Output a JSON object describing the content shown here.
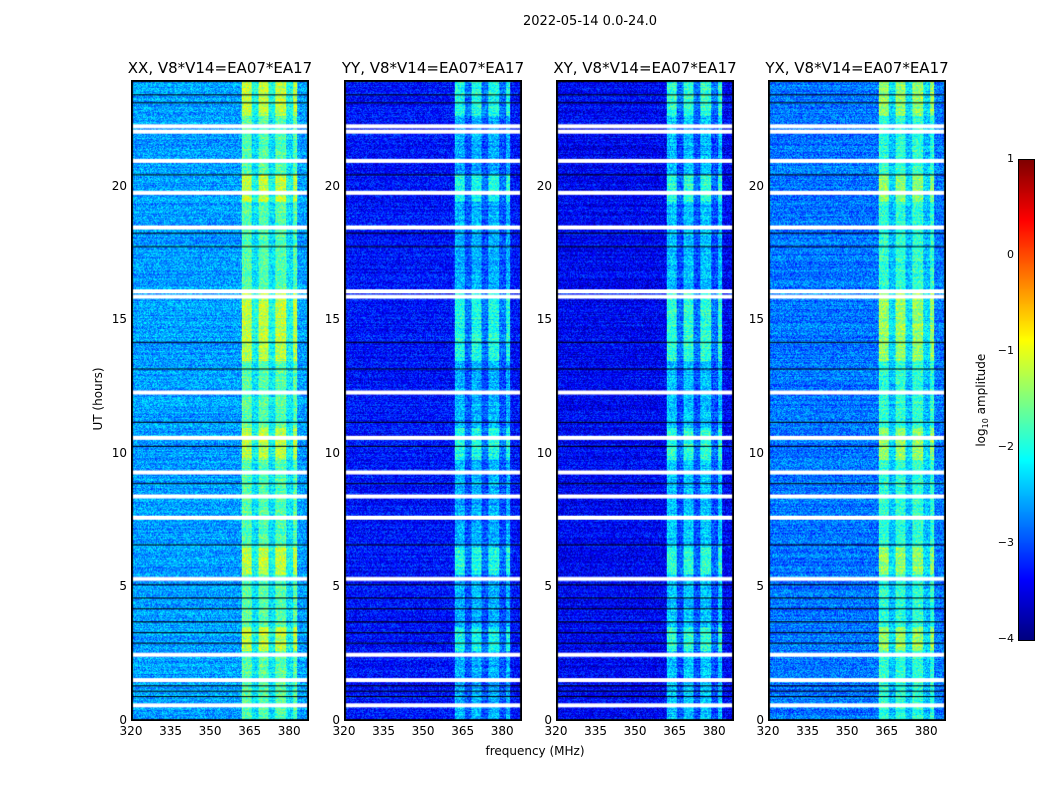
{
  "chart_data": {
    "type": "heatmap",
    "title": "2022-05-14 0.0-24.0",
    "xlabel": "frequency (MHz)",
    "ylabel": "UT (hours)",
    "xlim": [
      320,
      387.5
    ],
    "ylim": [
      0,
      24
    ],
    "xticks": [
      "320",
      "335",
      "350",
      "365",
      "380"
    ],
    "yticks": [
      "0",
      "5",
      "10",
      "15",
      "20"
    ],
    "rfi_band_mhz": [
      362,
      383
    ],
    "panels": [
      {
        "title": "XX, V8*V14=EA07*EA17",
        "base_log_amp": -2.6,
        "band_log_amp": -1.7
      },
      {
        "title": "YY, V8*V14=EA07*EA17",
        "base_log_amp": -3.3,
        "band_log_amp": -2.5
      },
      {
        "title": "XY, V8*V14=EA07*EA17",
        "base_log_amp": -3.4,
        "band_log_amp": -2.4
      },
      {
        "title": "YX, V8*V14=EA07*EA17",
        "base_log_amp": -2.8,
        "band_log_amp": -1.9
      }
    ],
    "flagged_white_hours": [
      0.55,
      1.5,
      2.45,
      5.3,
      7.6,
      8.4,
      9.3,
      10.6,
      12.3,
      15.9,
      16.1,
      18.5,
      19.8,
      21.0,
      22.1,
      22.3
    ],
    "flagged_black_hours": [
      0.9,
      1.1,
      1.3,
      2.9,
      3.3,
      3.7,
      4.2,
      4.6,
      5.1,
      6.6,
      8.9,
      10.3,
      11.2,
      13.2,
      14.2,
      17.8,
      18.3,
      20.5,
      23.2,
      23.5
    ],
    "colorbar": {
      "label": "log10 amplitude",
      "label_main": "log",
      "label_sub": "10",
      "label_rest": " amplitude",
      "ticks": [
        "1",
        "0",
        "−1",
        "−2",
        "−3",
        "−4"
      ],
      "range": [
        -4,
        1
      ]
    }
  }
}
